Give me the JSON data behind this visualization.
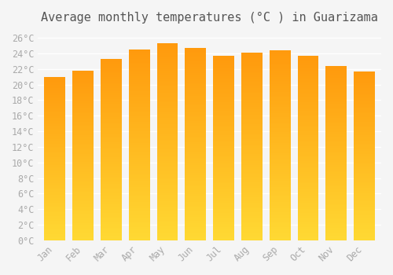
{
  "title": "Average monthly temperatures (°C ) in Guarizama",
  "months": [
    "Jan",
    "Feb",
    "Mar",
    "Apr",
    "May",
    "Jun",
    "Jul",
    "Aug",
    "Sep",
    "Oct",
    "Nov",
    "Dec"
  ],
  "values": [
    21.0,
    21.8,
    23.3,
    24.5,
    25.3,
    24.7,
    23.7,
    24.1,
    24.4,
    23.7,
    22.4,
    21.7
  ],
  "bar_color_top": "#FFA500",
  "bar_color_bottom": "#FFD700",
  "ylim": [
    0,
    27
  ],
  "yticks": [
    0,
    2,
    4,
    6,
    8,
    10,
    12,
    14,
    16,
    18,
    20,
    22,
    24,
    26
  ],
  "ytick_labels": [
    "0°C",
    "2°C",
    "4°C",
    "6°C",
    "8°C",
    "10°C",
    "12°C",
    "14°C",
    "16°C",
    "18°C",
    "20°C",
    "22°C",
    "24°C",
    "26°C"
  ],
  "background_color": "#f5f5f5",
  "grid_color": "#ffffff",
  "title_fontsize": 11,
  "tick_fontsize": 8.5,
  "bar_edge_color": "#e8950a",
  "font_color": "#aaaaaa"
}
